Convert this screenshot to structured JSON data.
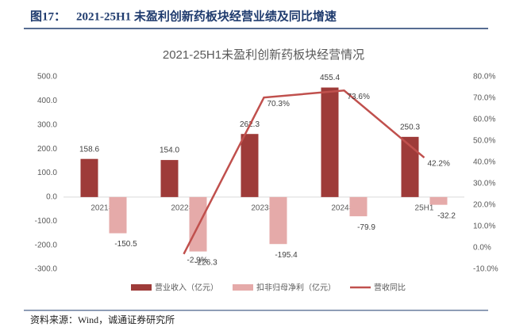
{
  "header": {
    "label": "图17：",
    "title": "2021-25H1 未盈利创新药板块经营业绩及同比增速"
  },
  "chart_data": {
    "type": "bar_line",
    "title": "2021-25H1未盈利创新药板块经营情况",
    "categories": [
      "2021年",
      "2022年",
      "2023年",
      "2024年",
      "25H1"
    ],
    "series": [
      {
        "name": "营业收入（亿元）",
        "type": "bar",
        "color": "#9e3b39",
        "values": [
          158.6,
          154.0,
          262.3,
          455.4,
          250.3
        ],
        "value_labels": [
          "158.6",
          "154.0",
          "262.3",
          "455.4",
          "250.3"
        ]
      },
      {
        "name": "扣非归母净利（亿元）",
        "type": "bar",
        "color": "#e5aaa9",
        "values": [
          -150.5,
          -226.3,
          -195.4,
          -79.9,
          -32.2
        ],
        "value_labels": [
          "-150.5",
          "-226.3",
          "-195.4",
          "-79.9",
          "-32.2"
        ]
      },
      {
        "name": "营收同比",
        "type": "line",
        "axis": "y2",
        "color": "#c0504d",
        "values": [
          null,
          -2.9,
          70.3,
          73.6,
          42.2
        ],
        "value_labels": [
          null,
          "-2.9%",
          "70.3%",
          "73.6%",
          "42.2%"
        ]
      }
    ],
    "ylim": [
      -300,
      500
    ],
    "yticks": [
      {
        "value": -300,
        "label": "-300.0"
      },
      {
        "value": -200,
        "label": "-200.0"
      },
      {
        "value": -100,
        "label": "-100.0"
      },
      {
        "value": 0,
        "label": "0.0"
      },
      {
        "value": 100,
        "label": "100.0"
      },
      {
        "value": 200,
        "label": "200.0"
      },
      {
        "value": 300,
        "label": "300.0"
      },
      {
        "value": 400,
        "label": "400.0"
      },
      {
        "value": 500,
        "label": "500.0"
      }
    ],
    "y2lim": [
      -10,
      80
    ],
    "y2ticks": [
      {
        "value": -10,
        "label": "-10.0%"
      },
      {
        "value": 0,
        "label": "0.0%"
      },
      {
        "value": 10,
        "label": "10.0%"
      },
      {
        "value": 20,
        "label": "20.0%"
      },
      {
        "value": 30,
        "label": "30.0%"
      },
      {
        "value": 40,
        "label": "40.0%"
      },
      {
        "value": 50,
        "label": "50.0%"
      },
      {
        "value": 60,
        "label": "60.0%"
      },
      {
        "value": 70,
        "label": "70.0%"
      },
      {
        "value": 80,
        "label": "80.0%"
      }
    ],
    "grid": false,
    "legend": "bottom"
  },
  "source": "资料来源：Wind，诚通证券研究所"
}
